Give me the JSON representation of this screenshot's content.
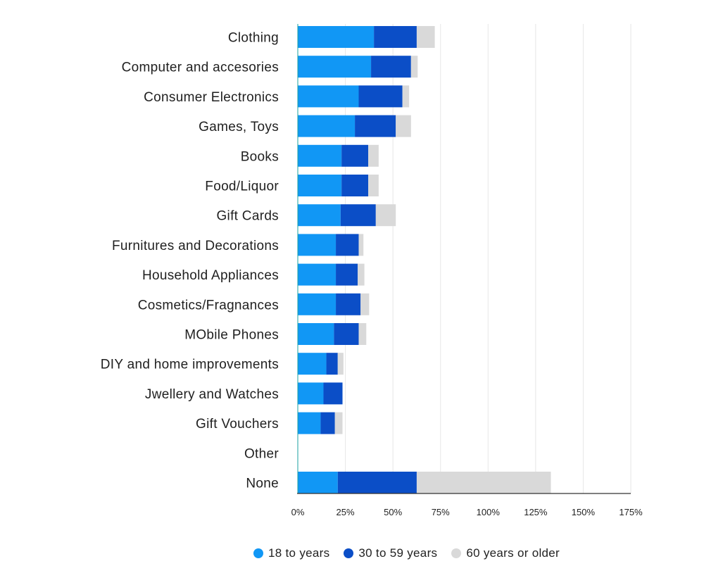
{
  "chart_data": {
    "type": "bar",
    "orientation": "horizontal",
    "stacked": true,
    "categories": [
      "Clothing",
      "Computer and accesories",
      "Consumer Electronics",
      "Games, Toys",
      "Books",
      "Food/Liquor",
      "Gift Cards",
      "Furnitures and Decorations",
      "Household Appliances",
      "Cosmetics/Fragnances",
      "MObile Phones",
      "DIY and home improvements",
      "Jwellery and Watches",
      "Gift Vouchers",
      "Other",
      "None"
    ],
    "series": [
      {
        "name": "18 to years",
        "color": "#1197f5",
        "values": [
          40,
          38.5,
          32,
          30,
          23,
          23,
          22.5,
          20,
          20,
          20,
          19,
          15,
          13.5,
          12,
          0,
          21
        ]
      },
      {
        "name": "30 to 59 years",
        "color": "#0b4ec7",
        "values": [
          22.5,
          21,
          23,
          21.5,
          14,
          14,
          18.5,
          12,
          11.5,
          13,
          13,
          6,
          10,
          7.5,
          0,
          41.5
        ]
      },
      {
        "name": "60 years or older",
        "color": "#d9d9d9",
        "values": [
          9.5,
          3.5,
          3.5,
          8,
          5.5,
          5.5,
          10.5,
          2.5,
          3.5,
          4.5,
          4,
          3,
          0,
          4,
          0,
          70.5
        ]
      }
    ],
    "xlim": [
      0,
      175
    ],
    "x_ticks": [
      0,
      25,
      50,
      75,
      100,
      125,
      150,
      175
    ],
    "x_tick_labels": [
      "0%",
      "25%",
      "50%",
      "75%",
      "100%",
      "125%",
      "150%",
      "175%"
    ],
    "grid": "vertical",
    "legend_position": "bottom",
    "title": "",
    "xlabel": "",
    "ylabel": ""
  }
}
